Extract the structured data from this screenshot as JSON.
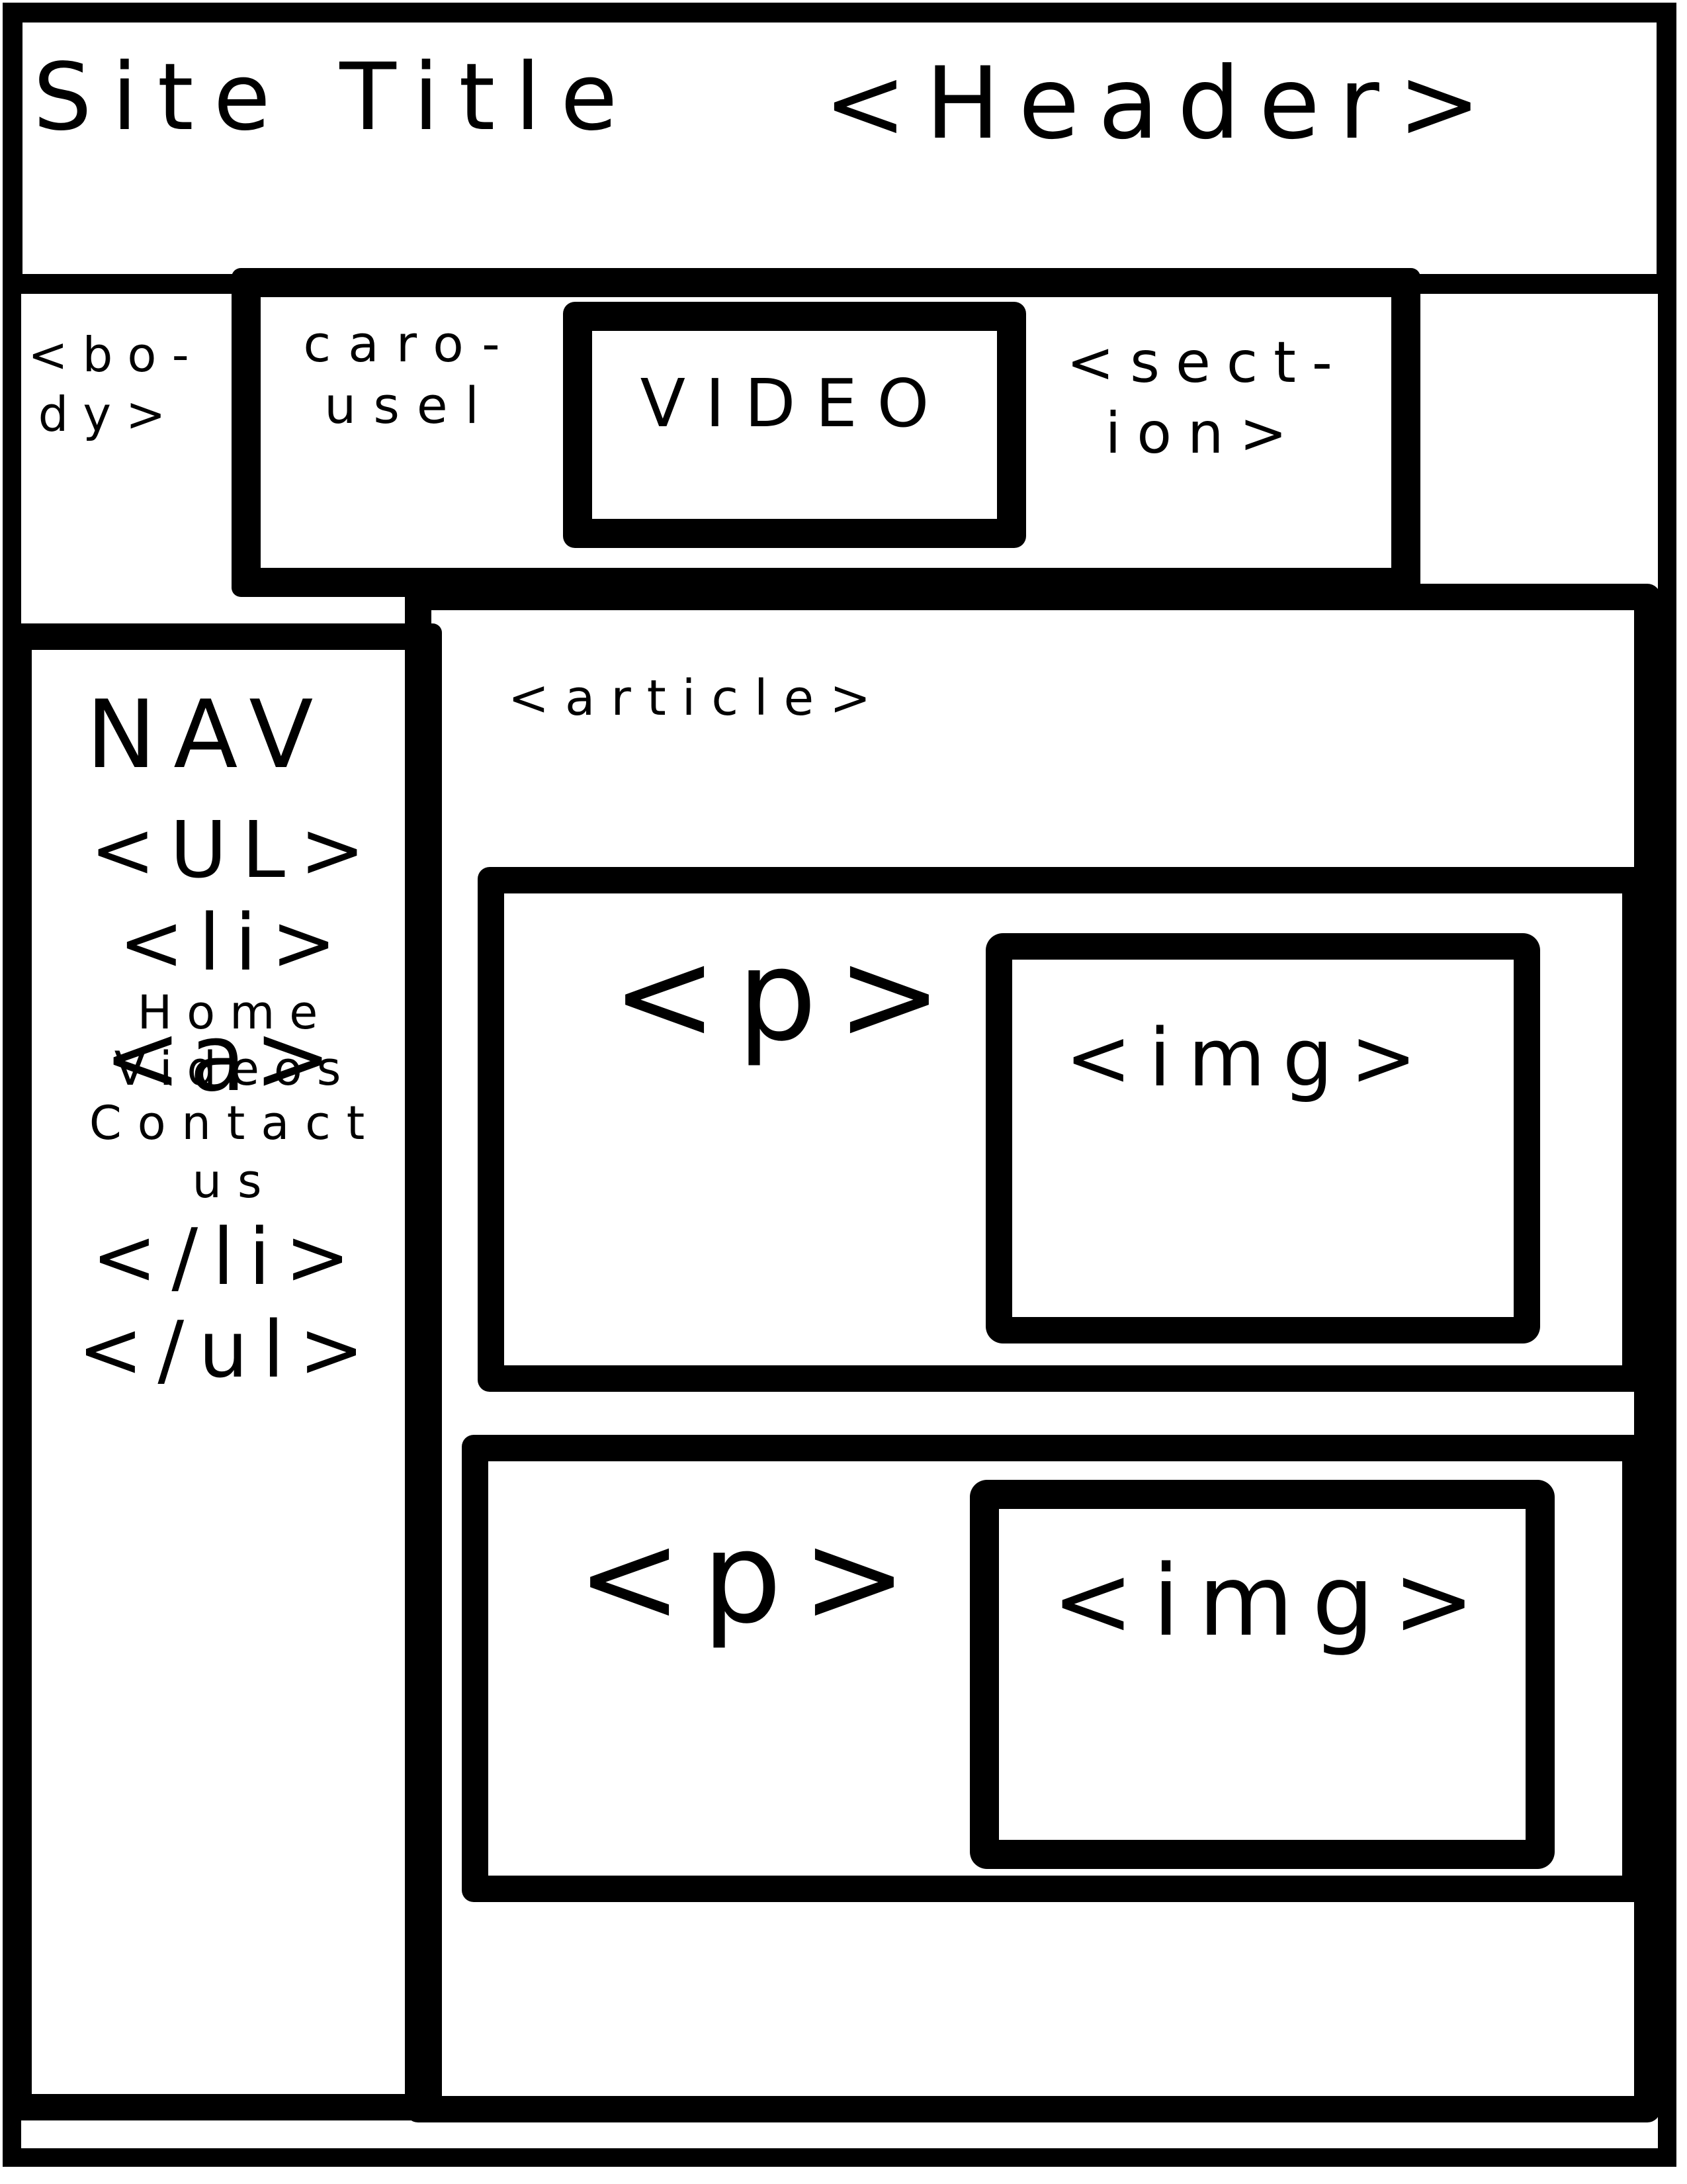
{
  "header": {
    "site_title": "Site Title",
    "label": "<Header>"
  },
  "body_tag": {
    "line1": "<bo-",
    "line2": "dy>"
  },
  "carousel": {
    "line1": "caro-",
    "line2": "usel"
  },
  "video": {
    "label": "VIDEO"
  },
  "section": {
    "line1": "<sect-",
    "line2": "ion>"
  },
  "nav": {
    "title": "NAV",
    "ul_open": "<UL>",
    "li_open": "<li>",
    "a_tag": "<a>",
    "links": [
      "Home",
      "Videos",
      "Contact",
      "us"
    ],
    "li_close": "</li>",
    "ul_close": "</ul>"
  },
  "article": {
    "label": "<article>",
    "blocks": [
      {
        "p": "<p>",
        "img": "<img>"
      },
      {
        "p": "<p>",
        "img": "<img>"
      }
    ]
  }
}
